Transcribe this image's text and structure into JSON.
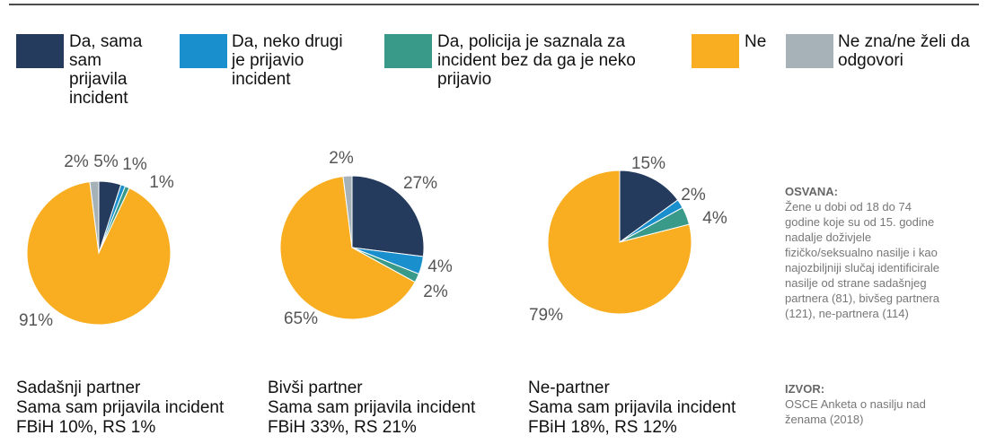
{
  "legend": {
    "categories": [
      "Da, sama sam prijavila incident",
      "Da, neko drugi je prijavio incident",
      "Da, policija je saznala za incident bez da ga je neko prijavio",
      "Ne",
      "Ne zna/ne želi da odgovori"
    ],
    "colors": [
      "#253b5e",
      "#1a8fce",
      "#3a9a8a",
      "#f9ae22",
      "#a7b1b8"
    ]
  },
  "chart_data": [
    {
      "type": "pie",
      "title": "Sadašnji partner",
      "subtitle": "Sama sam prijavila incident",
      "annotation": "FBiH 10%, RS 1%",
      "values": [
        5,
        1,
        1,
        91,
        2
      ],
      "value_labels": [
        "5%",
        "1%",
        "1%",
        "91%",
        "2%"
      ]
    },
    {
      "type": "pie",
      "title": "Bivši partner",
      "subtitle": "Sama sam prijavila incident",
      "annotation": "FBiH 33%, RS 21%",
      "values": [
        27,
        4,
        2,
        65,
        2
      ],
      "value_labels": [
        "27%",
        "4%",
        "2%",
        "65%",
        "2%"
      ]
    },
    {
      "type": "pie",
      "title": "Ne-partner",
      "subtitle": "Sama sam prijavila incident",
      "annotation": "FBiH 18%, RS 12%",
      "values": [
        15,
        2,
        4,
        79
      ],
      "value_labels": [
        "15%",
        "2%",
        "4%",
        "79%"
      ]
    }
  ],
  "notes": {
    "sample_title": "OSVANA:",
    "sample_text": "Žene u dobi od 18 do 74 godine koje su od 15. godine nadalje doživjele fizičko/seksualno nasilje i kao najozbiljniji slučaj identificirale nasilje od strane sadašnjeg partnera (81), bivšeg partnera (121), ne-partnera (114)",
    "source_title": "IZVOR:",
    "source_text": "OSCE Anketa o nasilju nad ženama (2018)"
  }
}
